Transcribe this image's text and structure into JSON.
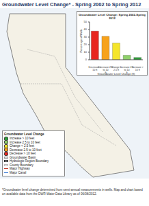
{
  "title": "Groundwater Level Change* - Spring 2002 to Spring 2012",
  "chart_data": {
    "type": "bar",
    "title": "Groundwater Level Change: Spring 2002-Spring 2012",
    "categories": [
      "Decrease > 10 ft",
      "Decrease 2.5 to 10 ft",
      "Change < 2.5 ft",
      "Increase 2.5 to 10 ft",
      "Increase > 10 ft"
    ],
    "values": [
      38,
      31,
      22,
      6,
      3
    ],
    "colors": [
      "#e8251f",
      "#f7a21b",
      "#f5e52a",
      "#8fd16a",
      "#2e9e3a"
    ],
    "ylim": [
      0,
      50
    ],
    "yticks": [
      0,
      10,
      20,
      30,
      40,
      50
    ],
    "ylabel": "Percentage of Wells",
    "xlabel": "Groundwater Level Change (ft)",
    "grid": false
  },
  "map": {
    "legend_title": "Groundwater Level Change",
    "legend": [
      {
        "label": "Increase > 10 feet",
        "color": "#2e9e3a"
      },
      {
        "label": "Increase 2.5 to 10 feet",
        "color": "#8fd16a"
      },
      {
        "label": "Change < 2.5 feet",
        "color": "#f5e52a"
      },
      {
        "label": "Decrease 2.5 to 10 feet",
        "color": "#f7a21b"
      },
      {
        "label": "Decrease > 10 feet",
        "color": "#e8251f"
      }
    ],
    "features": [
      "Groundwater Basin",
      "Hydrologic Region Boundary",
      "County Boundary",
      "Major Highway",
      "Major Canal"
    ]
  },
  "footnote": "*Groundwater level change determined from semi-annual measurements in wells. Map and chart based on available data from the DWR Water Data Library as of 06/08/2012."
}
